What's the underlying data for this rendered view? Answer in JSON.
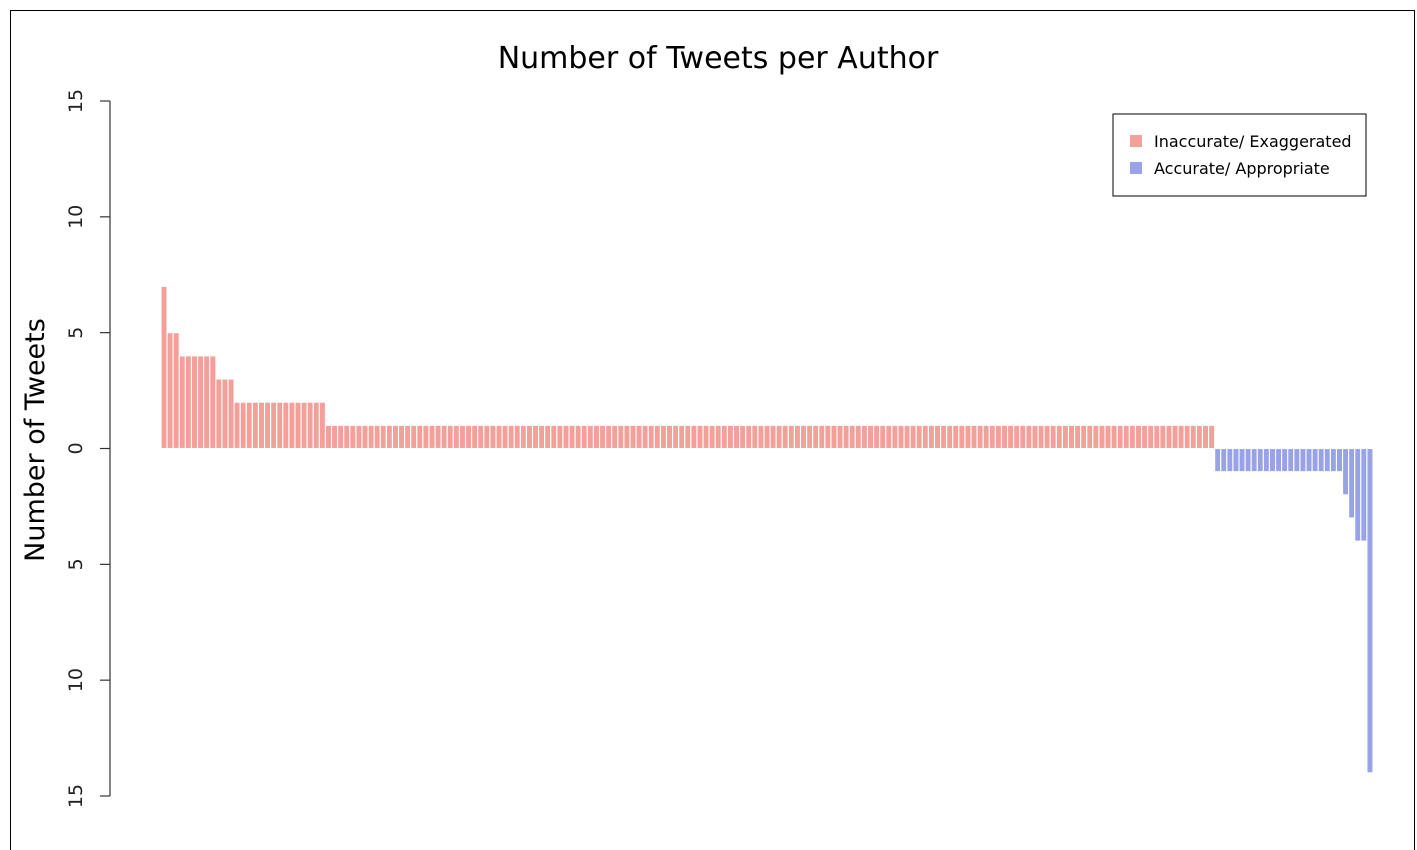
{
  "chart_data": {
    "type": "bar",
    "title": "Number of Tweets per Author",
    "xlabel": "",
    "ylabel": "Number of Tweets",
    "ylim": [
      -15,
      15
    ],
    "yticks": [
      {
        "value": 15,
        "label": "15"
      },
      {
        "value": 10,
        "label": "10"
      },
      {
        "value": 5,
        "label": "5"
      },
      {
        "value": 0,
        "label": "0"
      },
      {
        "value": -5,
        "label": "5"
      },
      {
        "value": -10,
        "label": "10"
      },
      {
        "value": -15,
        "label": "15"
      }
    ],
    "grid": false,
    "legend_position": "top-right",
    "series": [
      {
        "name": "Inaccurate/ Exaggerated",
        "color": "#F4A09A",
        "values": [
          7,
          5,
          5,
          4,
          4,
          4,
          4,
          4,
          4,
          3,
          3,
          3,
          2,
          2,
          2,
          2,
          2,
          2,
          2,
          2,
          2,
          2,
          2,
          2,
          2,
          2,
          2,
          1,
          1,
          1,
          1,
          1,
          1,
          1,
          1,
          1,
          1,
          1,
          1,
          1,
          1,
          1,
          1,
          1,
          1,
          1,
          1,
          1,
          1,
          1,
          1,
          1,
          1,
          1,
          1,
          1,
          1,
          1,
          1,
          1,
          1,
          1,
          1,
          1,
          1,
          1,
          1,
          1,
          1,
          1,
          1,
          1,
          1,
          1,
          1,
          1,
          1,
          1,
          1,
          1,
          1,
          1,
          1,
          1,
          1,
          1,
          1,
          1,
          1,
          1,
          1,
          1,
          1,
          1,
          1,
          1,
          1,
          1,
          1,
          1,
          1,
          1,
          1,
          1,
          1,
          1,
          1,
          1,
          1,
          1,
          1,
          1,
          1,
          1,
          1,
          1,
          1,
          1,
          1,
          1,
          1,
          1,
          1,
          1,
          1,
          1,
          1,
          1,
          1,
          1,
          1,
          1,
          1,
          1,
          1,
          1,
          1,
          1,
          1,
          1,
          1,
          1,
          1,
          1,
          1,
          1,
          1,
          1,
          1,
          1,
          1,
          1,
          1,
          1,
          1,
          1,
          1,
          1,
          1,
          1,
          1,
          1,
          1,
          1,
          1,
          1,
          1,
          1,
          1,
          1,
          1,
          1,
          1
        ]
      },
      {
        "name": "Accurate/ Appropriate",
        "color": "#97A3E6",
        "values": [
          1,
          1,
          1,
          1,
          1,
          1,
          1,
          1,
          1,
          1,
          1,
          1,
          1,
          1,
          1,
          1,
          1,
          1,
          1,
          1,
          1,
          2,
          3,
          4,
          4,
          14
        ]
      }
    ]
  }
}
